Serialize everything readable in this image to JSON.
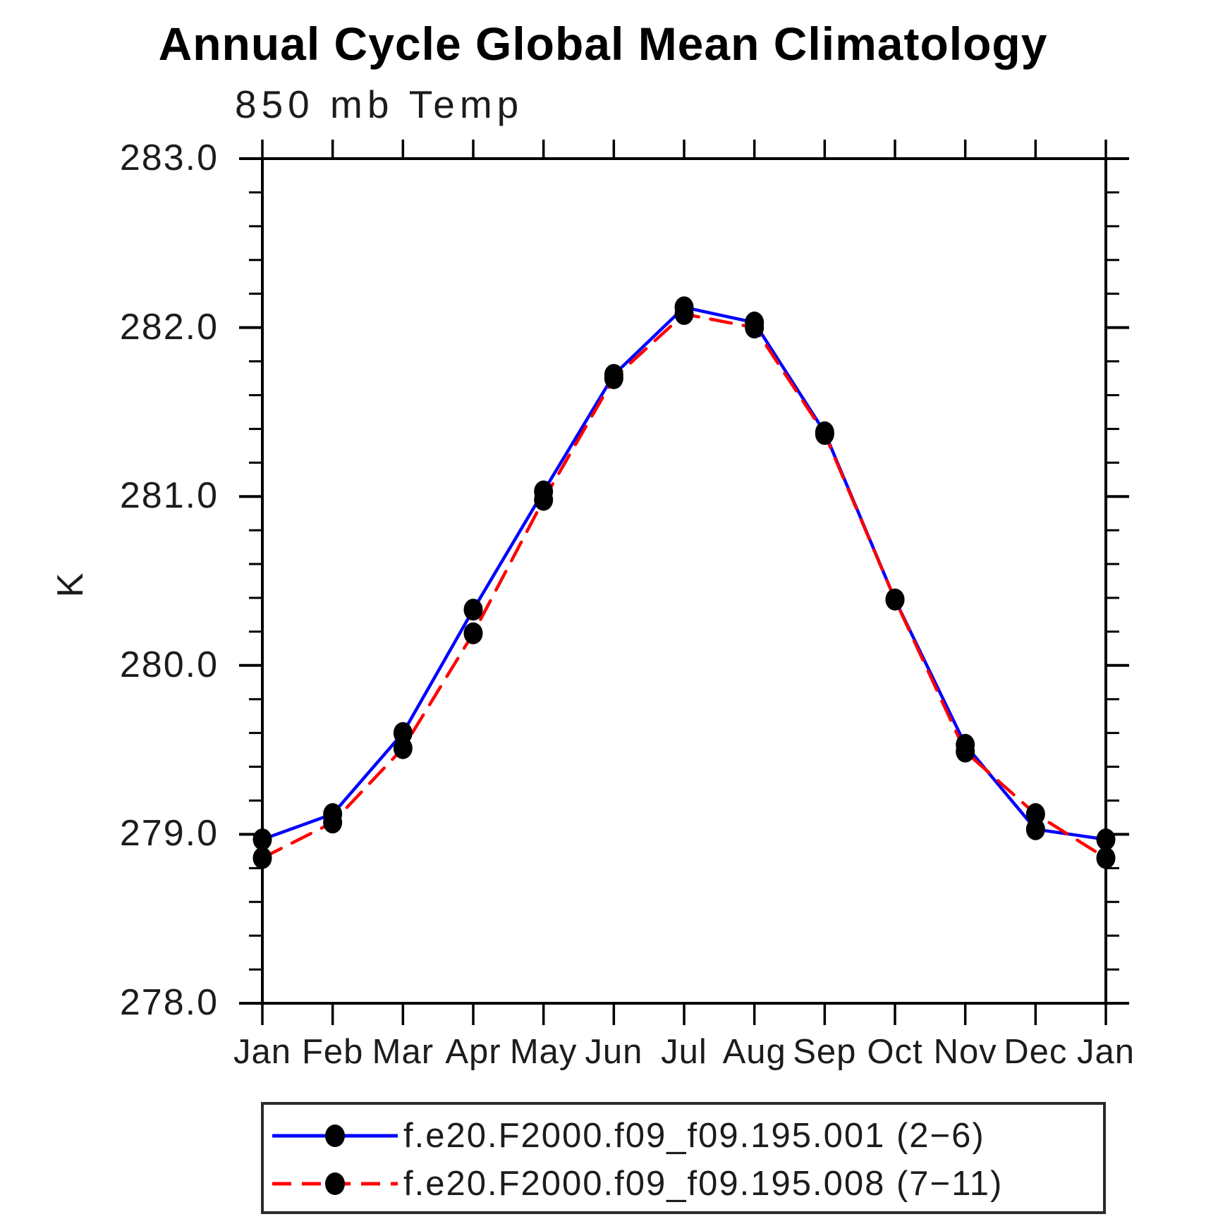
{
  "title": "Annual Cycle Global Mean Climatology",
  "subtitle": "850 mb Temp",
  "y_axis": {
    "label": "K",
    "major_tick_labels": [
      "283.0",
      "282.0",
      "281.0",
      "280.0",
      "279.0",
      "278.0"
    ]
  },
  "x_axis": {
    "tick_labels": [
      "Jan",
      "Feb",
      "Mar",
      "Apr",
      "May",
      "Jun",
      "Jul",
      "Aug",
      "Sep",
      "Oct",
      "Nov",
      "Dec",
      "Jan"
    ]
  },
  "colors": {
    "series1": "#0000ff",
    "series2": "#ff0000",
    "marker": "#000000",
    "axis": "#000000",
    "text": "#1c1c1c"
  },
  "chart_data": {
    "type": "line",
    "title": "Annual Cycle Global Mean Climatology",
    "subtitle": "850 mb Temp",
    "ylabel": "K",
    "categories": [
      "Jan",
      "Feb",
      "Mar",
      "Apr",
      "May",
      "Jun",
      "Jul",
      "Aug",
      "Sep",
      "Oct",
      "Nov",
      "Dec",
      "Jan"
    ],
    "series": [
      {
        "name": "f.e20.F2000.f09_f09.195.001 (2−6)",
        "color": "#0000ff",
        "line_style": "solid",
        "marker": "filled-circle",
        "marker_color": "#000000",
        "values": [
          278.97,
          279.12,
          279.6,
          280.33,
          281.03,
          281.72,
          282.12,
          282.03,
          281.38,
          280.39,
          279.53,
          279.03,
          278.97
        ]
      },
      {
        "name": "f.e20.F2000.f09_f09.195.008 (7−11)",
        "color": "#ff0000",
        "line_style": "dashed",
        "marker": "filled-circle",
        "marker_color": "#000000",
        "values": [
          278.86,
          279.07,
          279.51,
          280.19,
          280.98,
          281.7,
          282.08,
          282.0,
          281.37,
          280.39,
          279.49,
          279.12,
          278.86
        ]
      }
    ],
    "ylim": [
      278.0,
      283.0
    ],
    "ytick_interval_major": 1.0,
    "ytick_interval_minor": 0.2,
    "grid": false,
    "legend_position": "bottom"
  }
}
